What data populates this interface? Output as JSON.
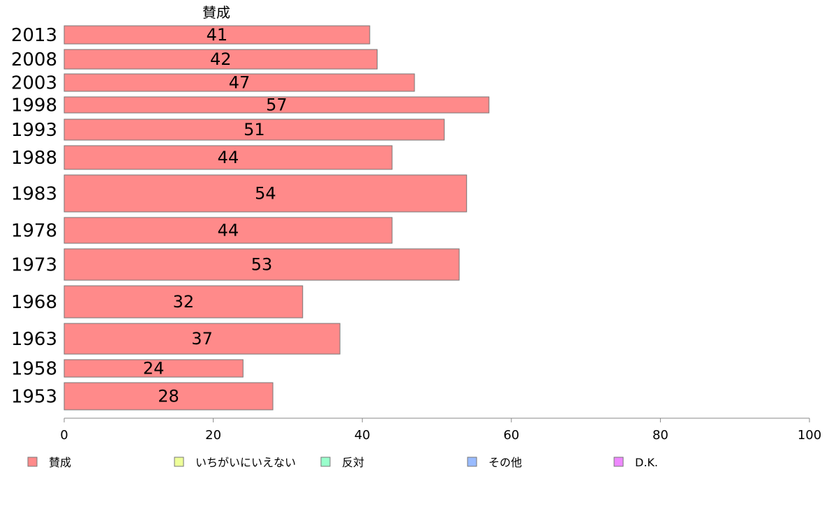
{
  "chart_data": {
    "type": "bar",
    "orientation": "horizontal",
    "categories": [
      "2013",
      "2008",
      "2003",
      "1998",
      "1993",
      "1988",
      "1983",
      "1978",
      "1973",
      "1968",
      "1963",
      "1958",
      "1953"
    ],
    "series": [
      {
        "name": "賛成",
        "values": [
          41,
          42,
          47,
          57,
          51,
          44,
          54,
          44,
          53,
          32,
          37,
          24,
          28
        ]
      }
    ],
    "xlim": [
      0,
      100
    ],
    "xticks": [
      0,
      20,
      40,
      60,
      80,
      100
    ],
    "grid": false,
    "legend": {
      "position": "bottom",
      "entries": [
        {
          "label": "賛成",
          "color": "#ff8a8a"
        },
        {
          "label": "いちがいにいえない",
          "color": "#eeff99"
        },
        {
          "label": "反対",
          "color": "#99ffcc"
        },
        {
          "label": "その他",
          "color": "#99bbff"
        },
        {
          "label": "D.K.",
          "color": "#ee88ff"
        }
      ]
    }
  }
}
